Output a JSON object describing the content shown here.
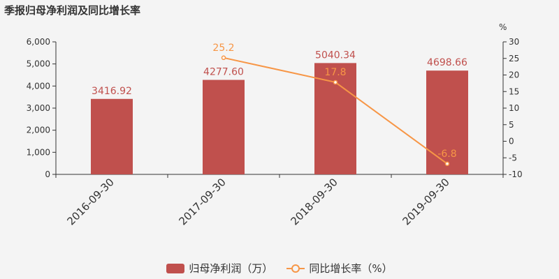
{
  "title": "季报归母净利润及同比增长率",
  "colors": {
    "bar": "#c0504d",
    "line": "#f79646",
    "bar_label": "#c0504d",
    "line_label": "#f79646",
    "axis": "#333333"
  },
  "chart_data": {
    "type": "bar",
    "categories": [
      "2016-09-30",
      "2017-09-30",
      "2018-09-30",
      "2019-09-30"
    ],
    "series": [
      {
        "name": "归母净利润（万）",
        "type": "bar",
        "axis": "left",
        "values": [
          3416.92,
          4277.6,
          5040.34,
          4698.66
        ],
        "labels": [
          "3416.92",
          "4277.60",
          "5040.34",
          "4698.66"
        ]
      },
      {
        "name": "同比增长率（%）",
        "type": "line",
        "axis": "right",
        "values": [
          null,
          25.2,
          17.8,
          -6.8
        ],
        "labels": [
          "",
          "25.2",
          "17.8",
          "-6.8"
        ]
      }
    ],
    "y_left": {
      "min": 0,
      "max": 6000,
      "ticks": [
        0,
        1000,
        2000,
        3000,
        4000,
        5000,
        6000
      ],
      "tick_labels": [
        "0",
        "1,000",
        "2,000",
        "3,000",
        "4,000",
        "5,000",
        "6,000"
      ]
    },
    "y_right": {
      "min": -10,
      "max": 30,
      "ticks": [
        -10,
        -5,
        0,
        5,
        10,
        15,
        20,
        25,
        30
      ],
      "tick_labels": [
        "-10",
        "-5",
        "0",
        "5",
        "10",
        "15",
        "20",
        "25",
        "30"
      ],
      "unit": "%"
    },
    "legend_position": "bottom-center",
    "grid": false
  }
}
